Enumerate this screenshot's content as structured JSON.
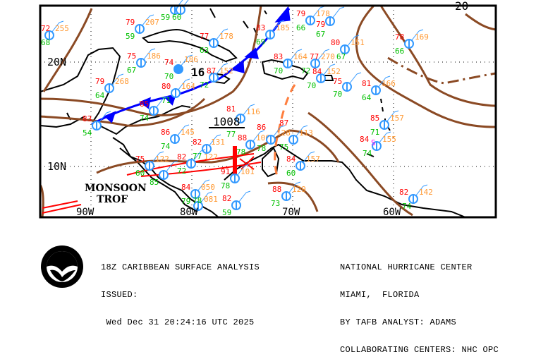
{
  "title_block": {
    "product": "18Z CARIBBEAN SURFACE ANALYSIS",
    "issued_label": "ISSUED:",
    "issued_time": " Wed Dec 31 20:24:16 UTC 2025",
    "center": "NATIONAL HURRICANE CENTER",
    "location": "MIAMI,  FLORIDA",
    "analyst": "BY TAFB ANALYST: ADAMS",
    "collaborating": "COLLABORATING CENTERS: NHC OPC"
  },
  "logo": {
    "text": "NOAA"
  },
  "map": {
    "lat_labels": [
      "20N",
      "10N"
    ],
    "lon_labels": [
      "90W",
      "80W",
      "70W",
      "60W"
    ],
    "feature_labels": {
      "monsoon_1": "MONSOON",
      "monsoon_2": "TROF",
      "low_pressure": "1008",
      "low_16": "16",
      "isobar_20": "20"
    },
    "colors": {
      "temperature": "#ff0000",
      "dewpoint": "#00c000",
      "pressure": "#ff9933",
      "station": "#3399ff",
      "isobar": "#8b4a24",
      "front": "#0000ff",
      "trough": "#ff7f3f",
      "monsoon_trough": "#ff0000",
      "coastline": "#000000"
    },
    "stations": [
      {
        "t": "72",
        "d": "68",
        "p": "255"
      },
      {
        "t": "79",
        "d": "59",
        "p": "207"
      },
      {
        "t": "",
        "d": "59",
        "p": ""
      },
      {
        "t": "",
        "d": "60",
        "p": ""
      },
      {
        "t": "77",
        "d": "63",
        "p": "178"
      },
      {
        "t": "75",
        "d": "67",
        "p": "186"
      },
      {
        "t": "74",
        "d": "70",
        "p": "186",
        "filled": true
      },
      {
        "t": "87",
        "d": "72",
        "p": "152"
      },
      {
        "t": "79",
        "d": "64",
        "p": "268"
      },
      {
        "t": "80",
        "d": "71",
        "p": "164"
      },
      {
        "t": "85",
        "d": "74",
        "p": ""
      },
      {
        "t": "83",
        "d": "54",
        "p": ""
      },
      {
        "t": "81",
        "d": "77",
        "p": "116"
      },
      {
        "t": "86",
        "d": "74",
        "p": "145"
      },
      {
        "t": "82",
        "d": "77",
        "p": "131"
      },
      {
        "t": "82",
        "d": "72",
        "p": "122"
      },
      {
        "t": "75",
        "d": "60",
        "p": "122"
      },
      {
        "t": "",
        "d": "85",
        "p": ""
      },
      {
        "t": "88",
        "d": "78",
        "p": "106"
      },
      {
        "t": "91",
        "d": "78",
        "p": "101"
      },
      {
        "t": "84",
        "d": "79",
        "p": "050"
      },
      {
        "t": "",
        "d": "78",
        "p": "081"
      },
      {
        "t": "82",
        "d": "59",
        "p": ""
      },
      {
        "t": "83",
        "d": "69",
        "p": "185"
      },
      {
        "t": "79",
        "d": "66",
        "p": "178"
      },
      {
        "t": "79",
        "d": "67",
        "p": ""
      },
      {
        "t": "83",
        "d": "70",
        "p": "164"
      },
      {
        "t": "77",
        "d": "72",
        "p": "270"
      },
      {
        "t": "80",
        "d": "67",
        "p": "151"
      },
      {
        "t": "84",
        "d": "70",
        "p": "152"
      },
      {
        "t": "75",
        "d": "70",
        "p": ""
      },
      {
        "t": "81",
        "d": "64",
        "p": "166"
      },
      {
        "t": "78",
        "d": "66",
        "p": "169"
      },
      {
        "t": "85",
        "d": "71",
        "p": "157"
      },
      {
        "t": "84",
        "d": "74",
        "p": "155",
        "wx": "S"
      },
      {
        "t": "86",
        "d": "78",
        "p": "128"
      },
      {
        "t": "87",
        "d": "75",
        "p": "113"
      },
      {
        "t": "84",
        "d": "60",
        "p": "157"
      },
      {
        "t": "88",
        "d": "73",
        "p": "129"
      },
      {
        "t": "82",
        "d": "74",
        "p": "142"
      }
    ]
  }
}
